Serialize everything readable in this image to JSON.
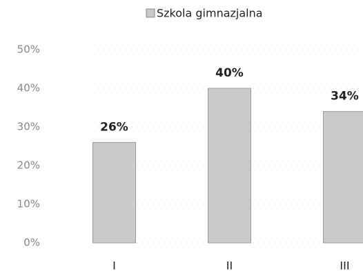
{
  "chart_data": {
    "type": "bar",
    "categories": [
      "I",
      "II",
      "III"
    ],
    "series": [
      {
        "name": "Szkola gimnazjalna",
        "color": "#c9c9c9",
        "values": [
          26,
          40,
          34
        ],
        "value_labels": [
          "26%",
          "40%",
          "34%"
        ]
      }
    ],
    "ylim": [
      0,
      50
    ],
    "yticks": [
      {
        "value": 0,
        "label": "0%"
      },
      {
        "value": 10,
        "label": "10%"
      },
      {
        "value": 20,
        "label": "20%"
      },
      {
        "value": 30,
        "label": "30%"
      },
      {
        "value": 40,
        "label": "40%"
      },
      {
        "value": 50,
        "label": "50%"
      }
    ],
    "grid": true,
    "legend": "top"
  }
}
